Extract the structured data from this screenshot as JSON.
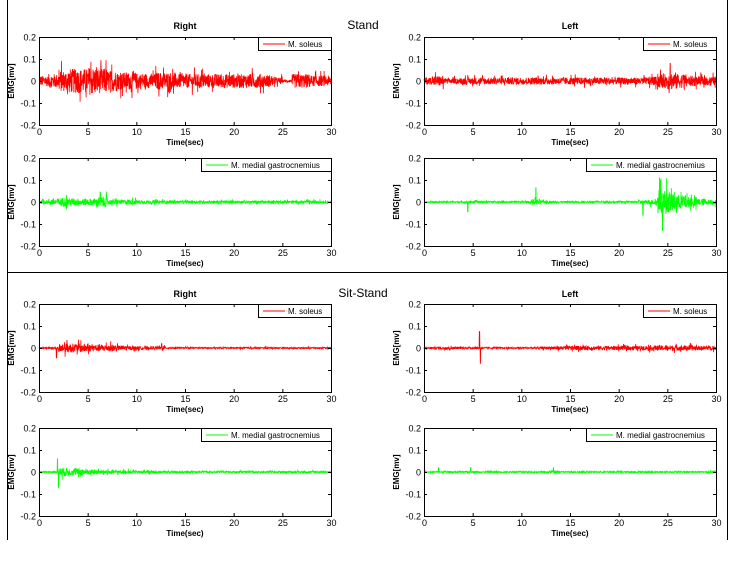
{
  "colors": {
    "soleus": "#ff0000",
    "gastrocnemius": "#00ff00",
    "axis": "#000000"
  },
  "chart_data": {
    "type": "line",
    "sections": [
      {
        "title": "Stand",
        "panels": [
          {
            "column_title": "Right",
            "subplots": [
              {
                "legend": "M. soleus",
                "color": "#ff0000",
                "envelope_per_sec": [
                  0.03,
                  0.04,
                  0.06,
                  0.07,
                  0.07,
                  0.08,
                  0.07,
                  0.06,
                  0.05,
                  0.05,
                  0.045,
                  0.04,
                  0.05,
                  0.05,
                  0.04,
                  0.04,
                  0.04,
                  0.04,
                  0.04,
                  0.04,
                  0.04,
                  0.04,
                  0.04,
                  0.035,
                  0.02,
                  0.008,
                  0.04,
                  0.04,
                  0.03,
                  0.03
                ],
                "spikes": []
              },
              {
                "legend": "M.  medial gastrocnemius",
                "color": "#00ff00",
                "envelope_per_sec": [
                  0.01,
                  0.02,
                  0.025,
                  0.02,
                  0.02,
                  0.02,
                  0.03,
                  0.015,
                  0.012,
                  0.015,
                  0.01,
                  0.01,
                  0.01,
                  0.008,
                  0.008,
                  0.008,
                  0.008,
                  0.008,
                  0.008,
                  0.008,
                  0.008,
                  0.008,
                  0.008,
                  0.008,
                  0.008,
                  0.008,
                  0.008,
                  0.008,
                  0.008,
                  0.008
                ],
                "spikes": [
                  [
                    6.3,
                    0.045
                  ]
                ]
              }
            ]
          },
          {
            "column_title": "Left",
            "subplots": [
              {
                "legend": "M. soleus",
                "color": "#ff0000",
                "envelope_per_sec": [
                  0.02,
                  0.03,
                  0.015,
                  0.015,
                  0.02,
                  0.02,
                  0.02,
                  0.02,
                  0.02,
                  0.02,
                  0.02,
                  0.02,
                  0.02,
                  0.02,
                  0.02,
                  0.02,
                  0.02,
                  0.02,
                  0.02,
                  0.02,
                  0.02,
                  0.02,
                  0.02,
                  0.025,
                  0.04,
                  0.05,
                  0.04,
                  0.03,
                  0.025,
                  0.025
                ],
                "spikes": [
                  [
                    25.3,
                    0.08
                  ]
                ]
              },
              {
                "legend": "M.  medial gastrocnemius",
                "color": "#00ff00",
                "envelope_per_sec": [
                  0.004,
                  0.004,
                  0.004,
                  0.004,
                  0.006,
                  0.006,
                  0.005,
                  0.005,
                  0.005,
                  0.005,
                  0.006,
                  0.015,
                  0.008,
                  0.006,
                  0.005,
                  0.005,
                  0.005,
                  0.005,
                  0.005,
                  0.005,
                  0.005,
                  0.005,
                  0.01,
                  0.015,
                  0.07,
                  0.06,
                  0.04,
                  0.03,
                  0.02,
                  0.015
                ],
                "spikes": [
                  [
                    4.5,
                    -0.045
                  ],
                  [
                    11.5,
                    0.065
                  ],
                  [
                    22.5,
                    -0.06
                  ],
                  [
                    24.2,
                    0.11
                  ],
                  [
                    24.5,
                    -0.13
                  ]
                ]
              }
            ]
          }
        ]
      },
      {
        "title": "Sit-Stand",
        "panels": [
          {
            "column_title": "Right",
            "subplots": [
              {
                "legend": "M. soleus",
                "color": "#ff0000",
                "envelope_per_sec": [
                  0.003,
                  0.005,
                  0.025,
                  0.025,
                  0.025,
                  0.02,
                  0.02,
                  0.02,
                  0.015,
                  0.01,
                  0.01,
                  0.008,
                  0.01,
                  0.004,
                  0.004,
                  0.004,
                  0.004,
                  0.004,
                  0.004,
                  0.004,
                  0.004,
                  0.005,
                  0.004,
                  0.004,
                  0.004,
                  0.004,
                  0.004,
                  0.004,
                  0.004,
                  0.004
                ],
                "spikes": [
                  [
                    1.8,
                    -0.045
                  ],
                  [
                    12.6,
                    0.02
                  ]
                ]
              },
              {
                "legend": "M.  medial gastrocnemius",
                "color": "#00ff00",
                "envelope_per_sec": [
                  0.003,
                  0.005,
                  0.025,
                  0.02,
                  0.02,
                  0.015,
                  0.012,
                  0.01,
                  0.01,
                  0.01,
                  0.008,
                  0.008,
                  0.006,
                  0.005,
                  0.005,
                  0.005,
                  0.005,
                  0.005,
                  0.005,
                  0.005,
                  0.005,
                  0.005,
                  0.005,
                  0.005,
                  0.005,
                  0.005,
                  0.005,
                  0.005,
                  0.005,
                  0.005
                ],
                "spikes": [
                  [
                    1.9,
                    0.06
                  ],
                  [
                    2.0,
                    -0.07
                  ]
                ]
              }
            ]
          },
          {
            "column_title": "Left",
            "subplots": [
              {
                "legend": "M. soleus",
                "color": "#ff0000",
                "envelope_per_sec": [
                  0.005,
                  0.008,
                  0.01,
                  0.006,
                  0.005,
                  0.006,
                  0.004,
                  0.004,
                  0.004,
                  0.004,
                  0.004,
                  0.008,
                  0.008,
                  0.01,
                  0.012,
                  0.012,
                  0.012,
                  0.012,
                  0.012,
                  0.012,
                  0.012,
                  0.012,
                  0.012,
                  0.015,
                  0.015,
                  0.015,
                  0.015,
                  0.015,
                  0.012,
                  0.012
                ],
                "spikes": [
                  [
                    5.7,
                    0.075
                  ],
                  [
                    5.8,
                    -0.07
                  ]
                ]
              },
              {
                "legend": "M.  medial gastrocnemius",
                "color": "#00ff00",
                "envelope_per_sec": [
                  0.003,
                  0.004,
                  0.006,
                  0.004,
                  0.004,
                  0.006,
                  0.004,
                  0.004,
                  0.004,
                  0.004,
                  0.004,
                  0.004,
                  0.004,
                  0.008,
                  0.004,
                  0.004,
                  0.004,
                  0.004,
                  0.004,
                  0.004,
                  0.004,
                  0.004,
                  0.004,
                  0.004,
                  0.004,
                  0.004,
                  0.004,
                  0.004,
                  0.004,
                  0.006
                ],
                "spikes": [
                  [
                    1.5,
                    0.02
                  ],
                  [
                    4.8,
                    0.02
                  ],
                  [
                    13.3,
                    0.02
                  ]
                ]
              }
            ]
          }
        ]
      }
    ],
    "xlabel": "Time(sec)",
    "ylabel": "EMG[mv]",
    "xlim": [
      0,
      30
    ],
    "ylim": [
      -0.2,
      0.2
    ],
    "xticks": [
      "0",
      "5",
      "10",
      "15",
      "20",
      "25",
      "30"
    ],
    "yticks": [
      "0.2",
      "0.1",
      "0",
      "-0.1",
      "-0.2"
    ],
    "grid": false,
    "legend_placement": "top-right"
  }
}
